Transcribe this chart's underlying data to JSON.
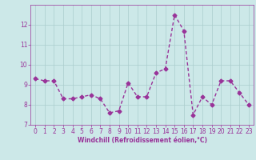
{
  "x": [
    0,
    1,
    2,
    3,
    4,
    5,
    6,
    7,
    8,
    9,
    10,
    11,
    12,
    13,
    14,
    15,
    16,
    17,
    18,
    19,
    20,
    21,
    22,
    23
  ],
  "y": [
    9.3,
    9.2,
    9.2,
    8.3,
    8.3,
    8.4,
    8.5,
    8.3,
    7.6,
    7.7,
    9.1,
    8.4,
    8.4,
    9.6,
    9.8,
    12.5,
    11.7,
    7.5,
    8.4,
    8.0,
    9.2,
    9.2,
    8.6,
    8.0
  ],
  "line_color": "#993399",
  "marker": "D",
  "marker_size": 2.5,
  "line_width": 1.0,
  "bg_color": "#cce8e8",
  "grid_color": "#aacccc",
  "xlabel": "Windchill (Refroidissement éolien,°C)",
  "xlabel_color": "#993399",
  "tick_color": "#993399",
  "ylim": [
    7,
    13
  ],
  "xlim": [
    -0.5,
    23.5
  ],
  "yticks": [
    7,
    8,
    9,
    10,
    11,
    12
  ],
  "xticks": [
    0,
    1,
    2,
    3,
    4,
    5,
    6,
    7,
    8,
    9,
    10,
    11,
    12,
    13,
    14,
    15,
    16,
    17,
    18,
    19,
    20,
    21,
    22,
    23
  ],
  "tick_fontsize": 5.5,
  "xlabel_fontsize": 5.5
}
